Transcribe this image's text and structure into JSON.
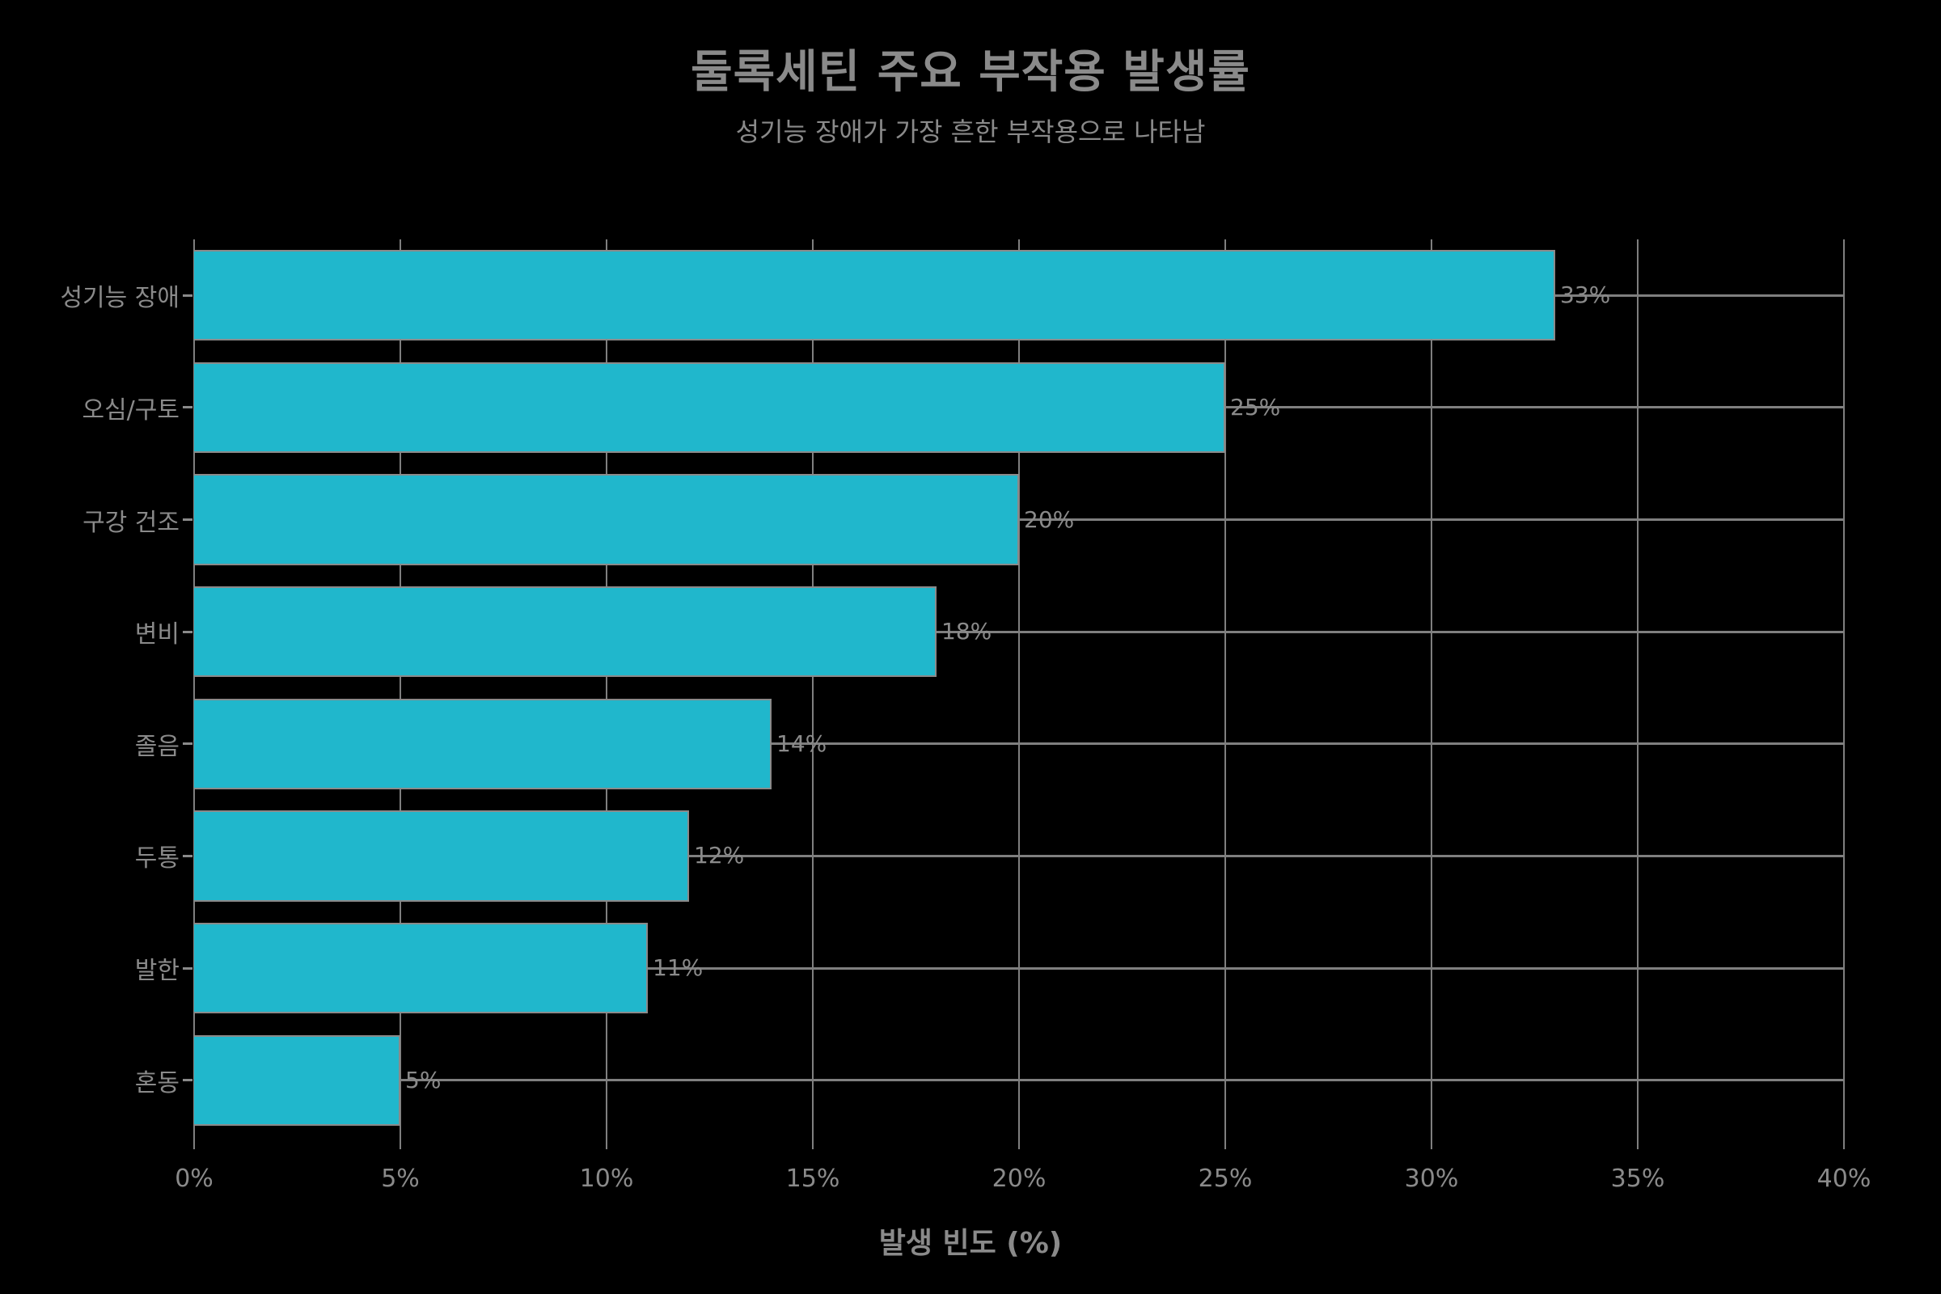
{
  "title": "둘록세틴 주요 부작용 발생률",
  "subtitle": "성기능 장애가 가장 흔한 부작용으로 나타남",
  "x_axis_title": "발생 빈도 (%)",
  "colors": {
    "bar": "#20B7CC",
    "background": "#000000",
    "text": "#8A8A8A",
    "grid": "#7F7F7F"
  },
  "chart_data": {
    "type": "bar",
    "orientation": "horizontal",
    "title": "둘록세틴 주요 부작용 발생률",
    "subtitle": "성기능 장애가 가장 흔한 부작용으로 나타남",
    "xlabel": "발생 빈도 (%)",
    "ylabel": "",
    "categories": [
      "성기능 장애",
      "오심/구토",
      "구강 건조",
      "변비",
      "졸음",
      "두통",
      "발한",
      "혼동"
    ],
    "values": [
      33,
      25,
      20,
      18,
      14,
      12,
      11,
      5
    ],
    "data_labels": [
      "33%",
      "25%",
      "20%",
      "18%",
      "14%",
      "12%",
      "11%",
      "5%"
    ],
    "xlim": [
      0,
      40
    ],
    "x_ticks": [
      "0%",
      "5%",
      "10%",
      "15%",
      "20%",
      "25%",
      "30%",
      "35%",
      "40%"
    ],
    "grid": true,
    "legend": false
  }
}
